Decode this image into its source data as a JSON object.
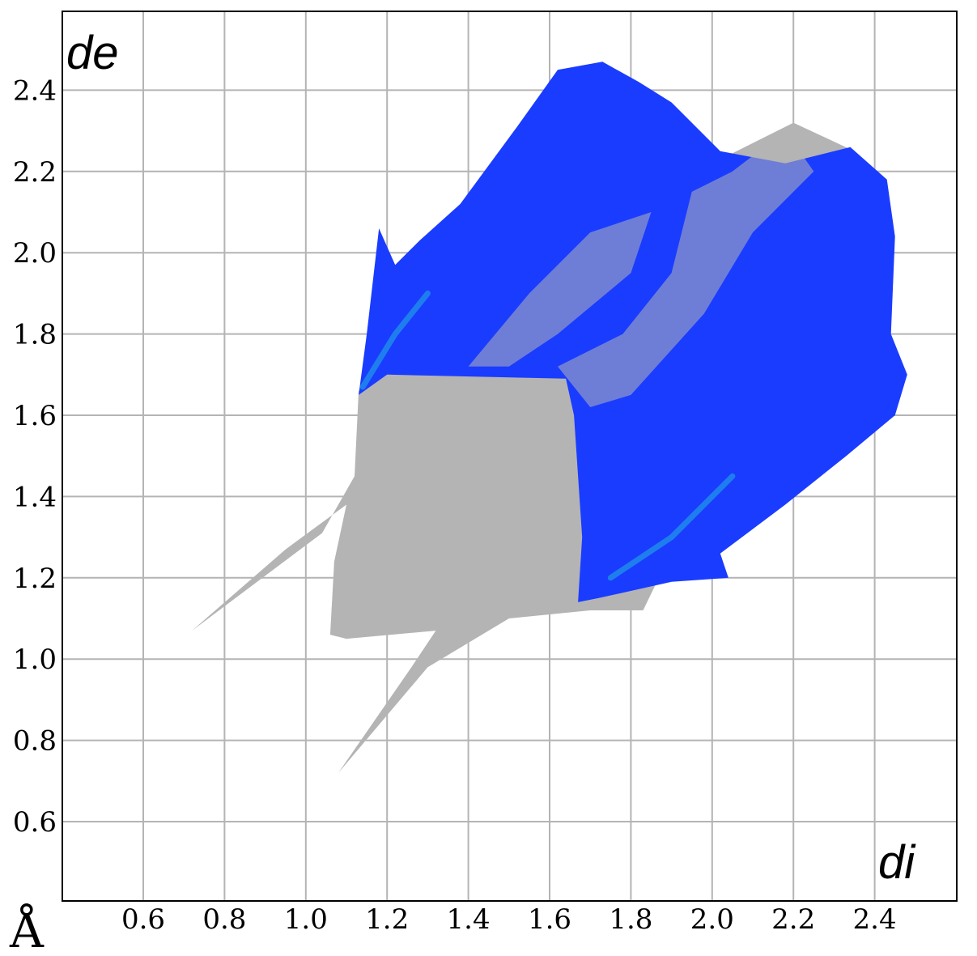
{
  "chart_data": {
    "type": "heatmap",
    "subtype": "hirshfeld-fingerprint-plot",
    "xlabel": "di",
    "ylabel": "de",
    "unit": "Å",
    "xlim": [
      0.4,
      2.6
    ],
    "ylim": [
      0.4,
      2.6
    ],
    "grid": true,
    "x_ticks": [
      "0.6",
      "0.8",
      "1.0",
      "1.2",
      "1.4",
      "1.6",
      "1.8",
      "2.0",
      "2.2",
      "2.4"
    ],
    "y_ticks": [
      "0.6",
      "0.8",
      "1.0",
      "1.2",
      "1.4",
      "1.6",
      "1.8",
      "2.0",
      "2.2",
      "2.4"
    ],
    "colors": {
      "full_plot": "#b4b4b4",
      "highlighted": "#1a3cff",
      "highlighted_dense": "#1f8fe8",
      "grid": "#b4b4b4",
      "axis": "#000000"
    },
    "regions": {
      "full_plot_outline": [
        [
          0.72,
          1.07
        ],
        [
          1.04,
          1.31
        ],
        [
          1.12,
          1.45
        ],
        [
          1.13,
          1.66
        ],
        [
          1.18,
          1.7
        ],
        [
          1.66,
          1.7
        ],
        [
          1.78,
          1.84
        ],
        [
          1.9,
          1.97
        ],
        [
          2.0,
          2.22
        ],
        [
          2.2,
          2.32
        ],
        [
          2.35,
          2.25
        ],
        [
          2.3,
          2.05
        ],
        [
          2.1,
          1.68
        ],
        [
          1.98,
          1.43
        ],
        [
          1.83,
          1.12
        ],
        [
          1.7,
          1.12
        ],
        [
          1.5,
          1.1
        ],
        [
          1.3,
          0.98
        ],
        [
          1.08,
          0.72
        ],
        [
          1.26,
          0.98
        ],
        [
          1.32,
          1.07
        ],
        [
          1.1,
          1.05
        ],
        [
          1.06,
          1.06
        ],
        [
          1.07,
          1.24
        ],
        [
          1.1,
          1.38
        ],
        [
          0.95,
          1.27
        ]
      ],
      "highlighted_outline": [
        [
          1.13,
          1.65
        ],
        [
          1.15,
          1.8
        ],
        [
          1.18,
          2.06
        ],
        [
          1.22,
          1.97
        ],
        [
          1.28,
          2.03
        ],
        [
          1.38,
          2.12
        ],
        [
          1.52,
          2.31
        ],
        [
          1.62,
          2.45
        ],
        [
          1.73,
          2.47
        ],
        [
          1.82,
          2.42
        ],
        [
          1.9,
          2.37
        ],
        [
          2.02,
          2.25
        ],
        [
          2.18,
          2.22
        ],
        [
          2.34,
          2.26
        ],
        [
          2.43,
          2.18
        ],
        [
          2.45,
          2.04
        ],
        [
          2.44,
          1.8
        ],
        [
          2.48,
          1.7
        ],
        [
          2.45,
          1.6
        ],
        [
          2.33,
          1.5
        ],
        [
          2.18,
          1.38
        ],
        [
          2.02,
          1.26
        ],
        [
          2.04,
          1.2
        ],
        [
          1.9,
          1.19
        ],
        [
          1.72,
          1.15
        ],
        [
          1.67,
          1.14
        ],
        [
          1.68,
          1.3
        ],
        [
          1.66,
          1.6
        ],
        [
          1.64,
          1.69
        ],
        [
          1.2,
          1.7
        ]
      ],
      "dense_ridges": [
        [
          [
            1.14,
            1.67
          ],
          [
            1.22,
            1.8
          ],
          [
            1.3,
            1.9
          ]
        ],
        [
          [
            1.75,
            1.2
          ],
          [
            1.9,
            1.3
          ],
          [
            2.05,
            1.45
          ]
        ]
      ]
    }
  }
}
